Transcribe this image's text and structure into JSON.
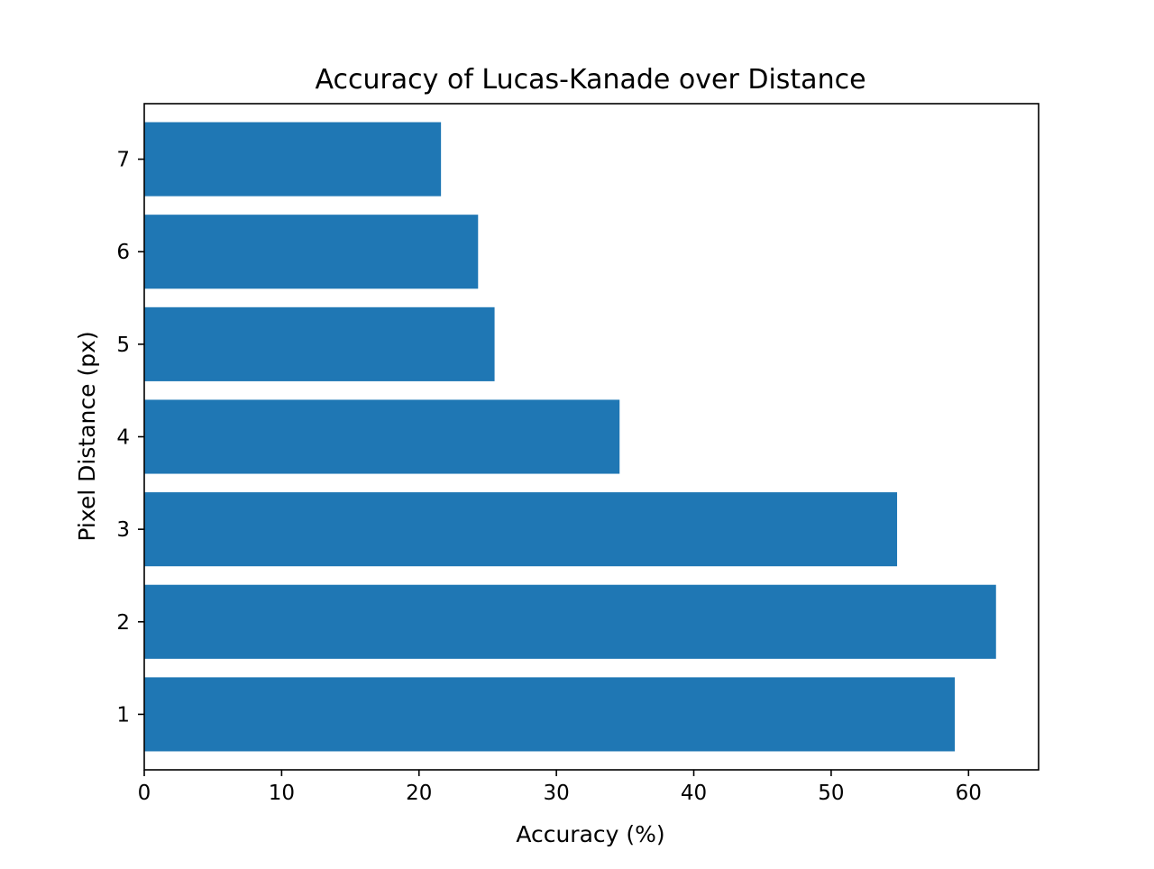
{
  "chart_data": {
    "type": "bar",
    "orientation": "horizontal",
    "title": "Accuracy of Lucas-Kanade over Distance",
    "xlabel": "Accuracy (%)",
    "ylabel": "Pixel Distance (px)",
    "categories": [
      "1",
      "2",
      "3",
      "4",
      "5",
      "6",
      "7"
    ],
    "values": [
      59.0,
      62.0,
      54.8,
      34.6,
      25.5,
      24.3,
      21.6
    ],
    "xlim": [
      0,
      65.1
    ],
    "ylim": [
      0.4,
      7.6
    ],
    "xticks": [
      0,
      10,
      20,
      30,
      40,
      50,
      60
    ],
    "xtick_labels": [
      "0",
      "10",
      "20",
      "30",
      "40",
      "50",
      "60"
    ],
    "ytick_labels": [
      "1",
      "2",
      "3",
      "4",
      "5",
      "6",
      "7"
    ],
    "bar_color": "#1f77b4",
    "grid": false,
    "legend": "none"
  }
}
